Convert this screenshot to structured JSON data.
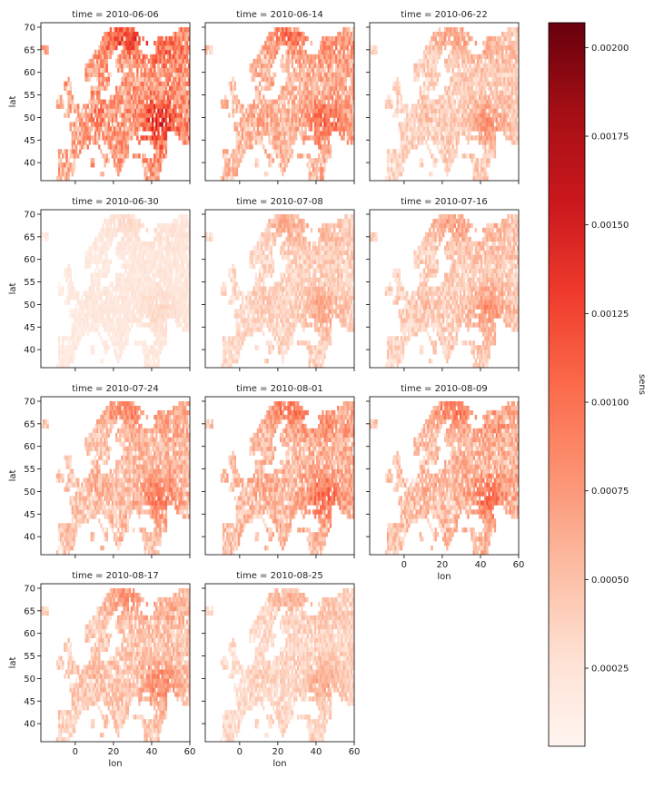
{
  "chart_data": {
    "type": "heatmap",
    "layout": "facet-grid",
    "facet_variable": "time",
    "facets": [
      {
        "title": "time = 2010-06-06",
        "intensity": 1.0
      },
      {
        "title": "time = 2010-06-14",
        "intensity": 0.78
      },
      {
        "title": "time = 2010-06-22",
        "intensity": 0.55
      },
      {
        "title": "time = 2010-06-30",
        "intensity": 0.22
      },
      {
        "title": "time = 2010-07-08",
        "intensity": 0.48
      },
      {
        "title": "time = 2010-07-16",
        "intensity": 0.55
      },
      {
        "title": "time = 2010-07-24",
        "intensity": 0.68
      },
      {
        "title": "time = 2010-08-01",
        "intensity": 0.74
      },
      {
        "title": "time = 2010-08-09",
        "intensity": 0.72
      },
      {
        "title": "time = 2010-08-17",
        "intensity": 0.6
      },
      {
        "title": "time = 2010-08-25",
        "intensity": 0.45
      }
    ],
    "x": {
      "label": "lon",
      "ticks": [
        0,
        20,
        40,
        60
      ],
      "range": [
        -18,
        60
      ]
    },
    "y": {
      "label": "lat",
      "ticks": [
        40,
        45,
        50,
        55,
        60,
        65,
        70
      ],
      "range": [
        36,
        71
      ]
    },
    "colorbar": {
      "label": "sens",
      "colormap": "Reds",
      "range": [
        3e-05,
        0.00207
      ],
      "ticks": [
        "0.00025",
        "0.00050",
        "0.00075",
        "0.00100",
        "0.00125",
        "0.00150",
        "0.00175",
        "0.00200"
      ],
      "colors": [
        "#fff5f0",
        "#fee0d2",
        "#fcbba1",
        "#fc9272",
        "#fb6a4a",
        "#ef3b2c",
        "#cb181d",
        "#a50f15",
        "#67000d"
      ]
    }
  }
}
